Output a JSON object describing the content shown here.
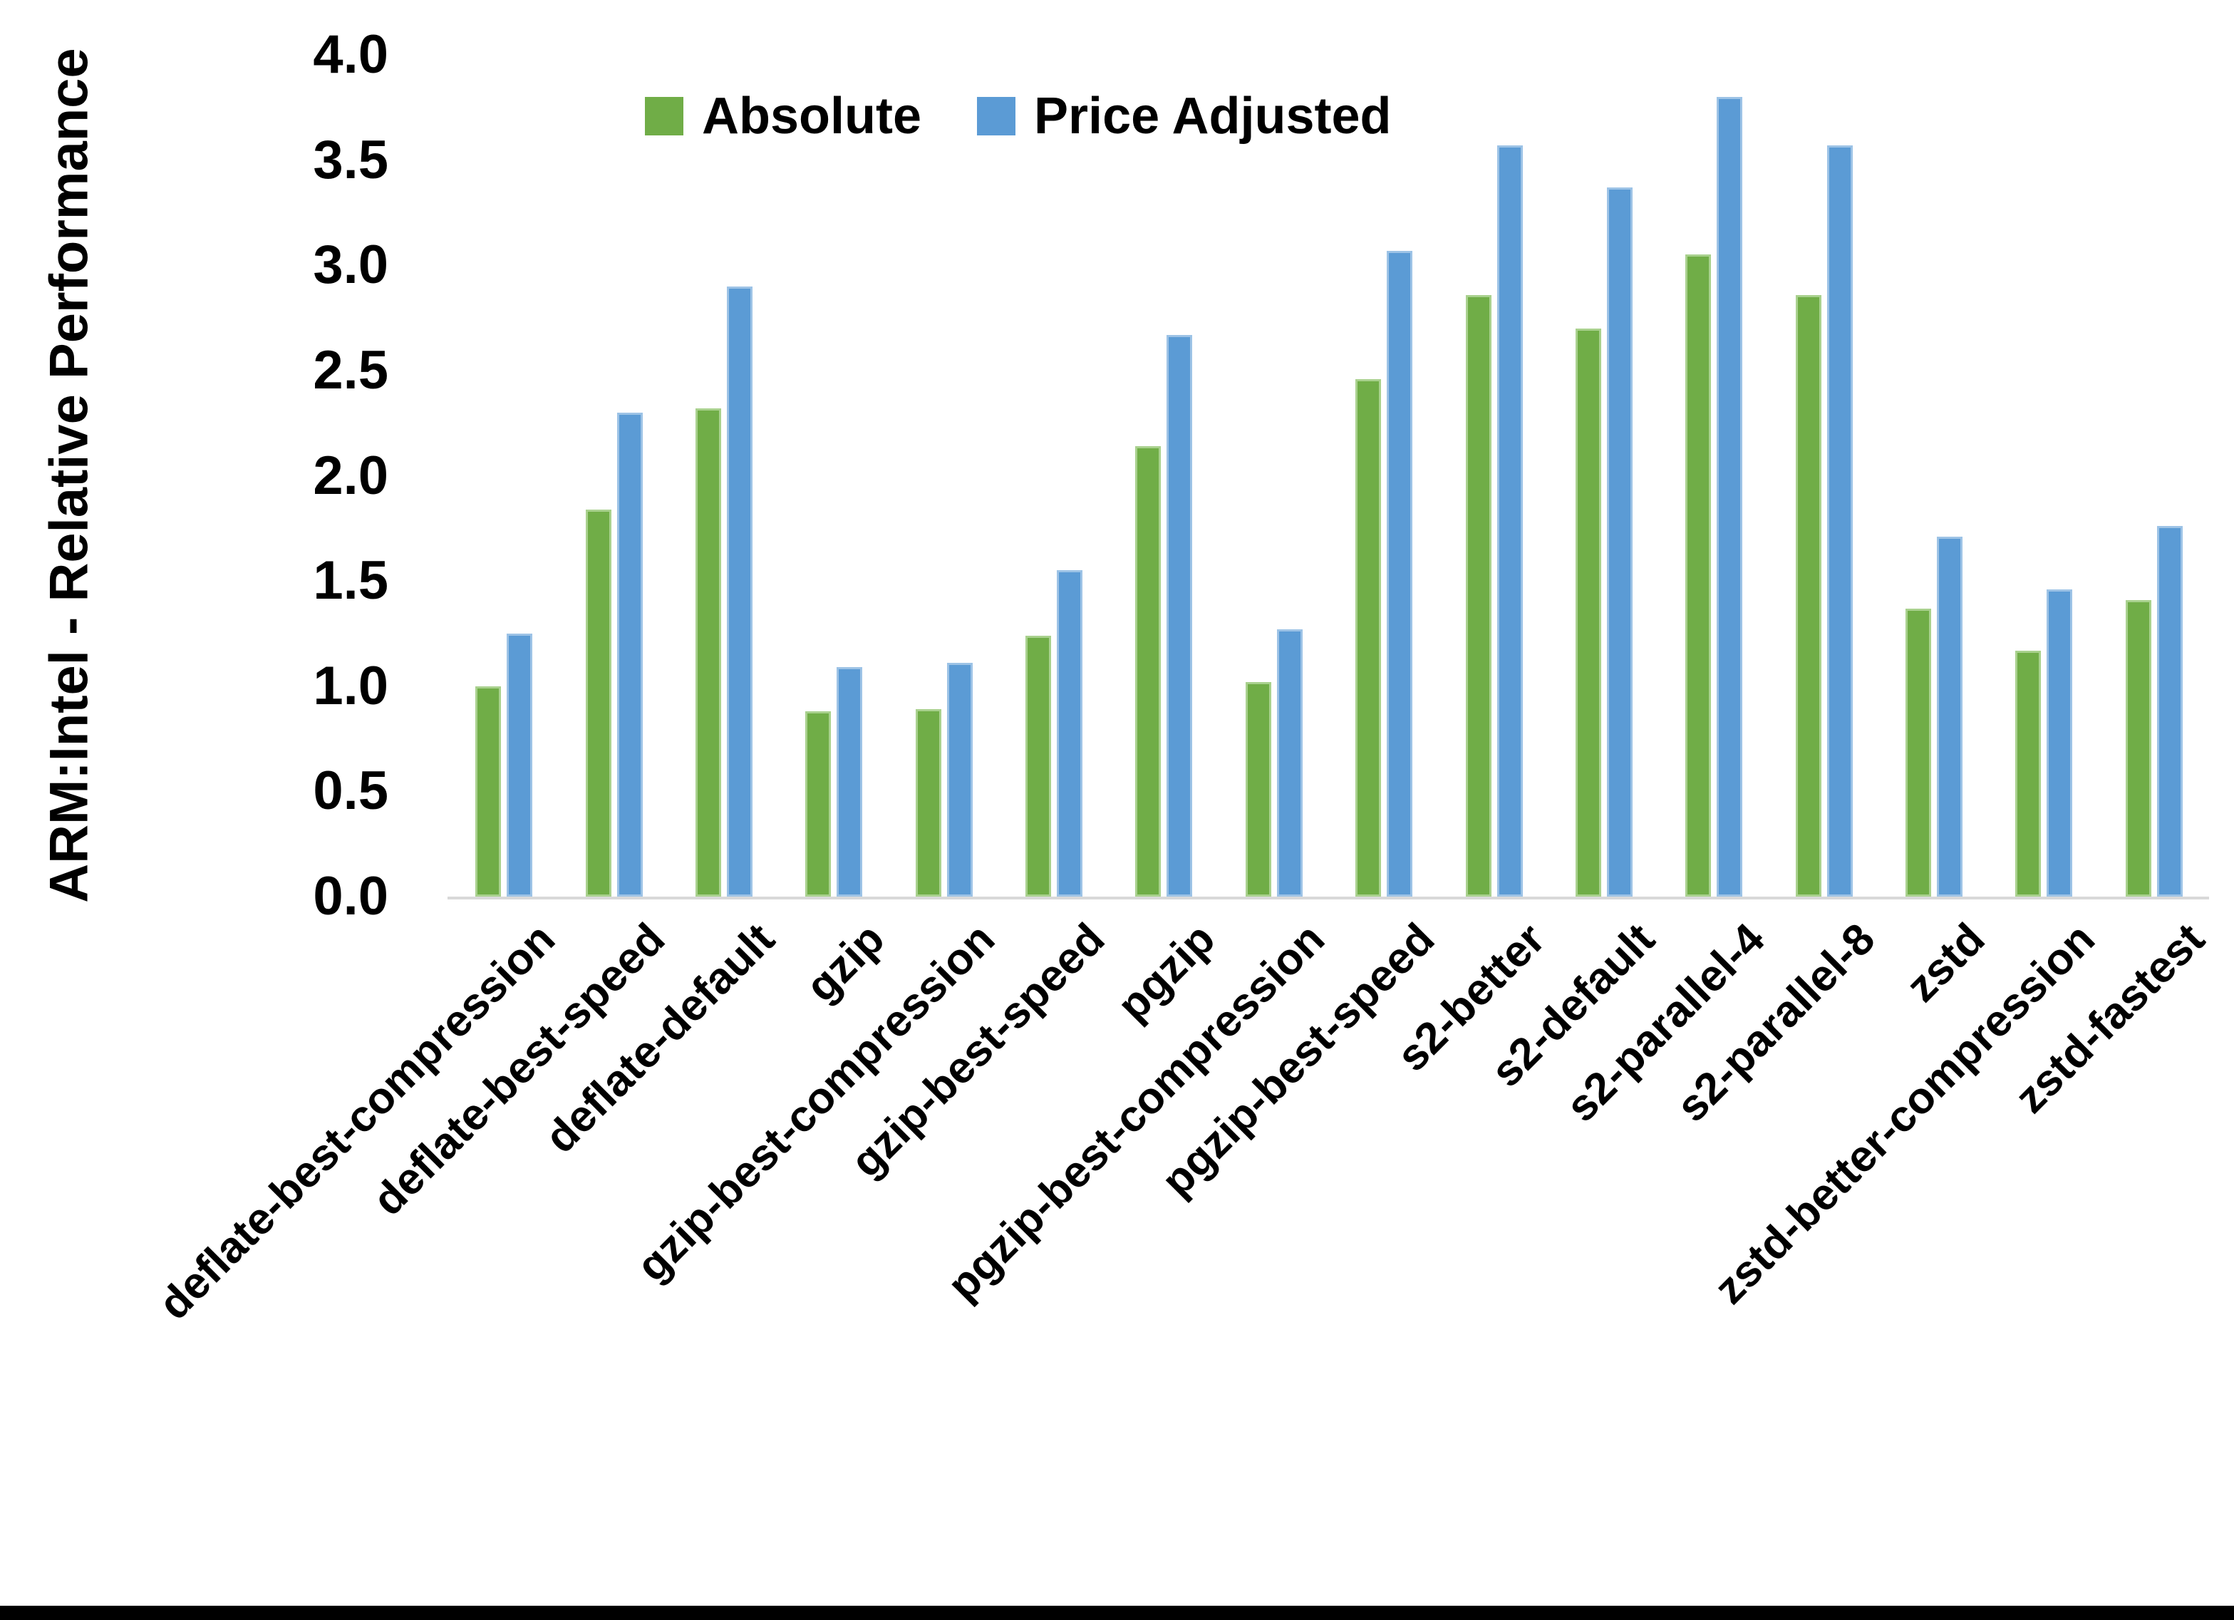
{
  "figure": {
    "y_axis_title": "ARM:Intel - Relative Performance"
  },
  "legend": {
    "items": [
      {
        "label": "Absolute",
        "color": "#70AD47"
      },
      {
        "label": "Price Adjusted",
        "color": "#5B9BD5"
      }
    ]
  },
  "axis": {
    "yticks": [
      "0.0",
      "0.5",
      "1.0",
      "1.5",
      "2.0",
      "2.5",
      "3.0",
      "3.5",
      "4.0"
    ]
  },
  "chart_data": {
    "type": "bar",
    "title": "",
    "xlabel": "",
    "ylabel": "ARM:Intel - Relative Performance",
    "ylim": [
      0,
      4
    ],
    "ytick_step": 0.5,
    "grid": false,
    "legend_position": "top, inside plot, left of center",
    "categories": [
      "deflate-best-compression",
      "deflate-best-speed",
      "deflate-default",
      "gzip",
      "gzip-best-compression",
      "gzip-best-speed",
      "pgzip",
      "pgzip-best-compression",
      "pgzip-best-speed",
      "s2-better",
      "s2-default",
      "s2-parallel-4",
      "s2-parallel-8",
      "zstd",
      "zstd-better-compression",
      "zstd-fastest"
    ],
    "series": [
      {
        "name": "Absolute",
        "color": "#70AD47",
        "border_color": "#A9D18E",
        "values": [
          1.0,
          1.84,
          2.32,
          0.88,
          0.89,
          1.24,
          2.14,
          1.02,
          2.46,
          2.86,
          2.7,
          3.05,
          2.86,
          1.37,
          1.17,
          1.41
        ]
      },
      {
        "name": "Price Adjusted",
        "color": "#5B9BD5",
        "border_color": "#9DC3E6",
        "values": [
          1.25,
          2.3,
          2.9,
          1.09,
          1.11,
          1.55,
          2.67,
          1.27,
          3.07,
          3.57,
          3.37,
          3.8,
          3.57,
          1.71,
          1.46,
          1.76
        ]
      }
    ]
  }
}
